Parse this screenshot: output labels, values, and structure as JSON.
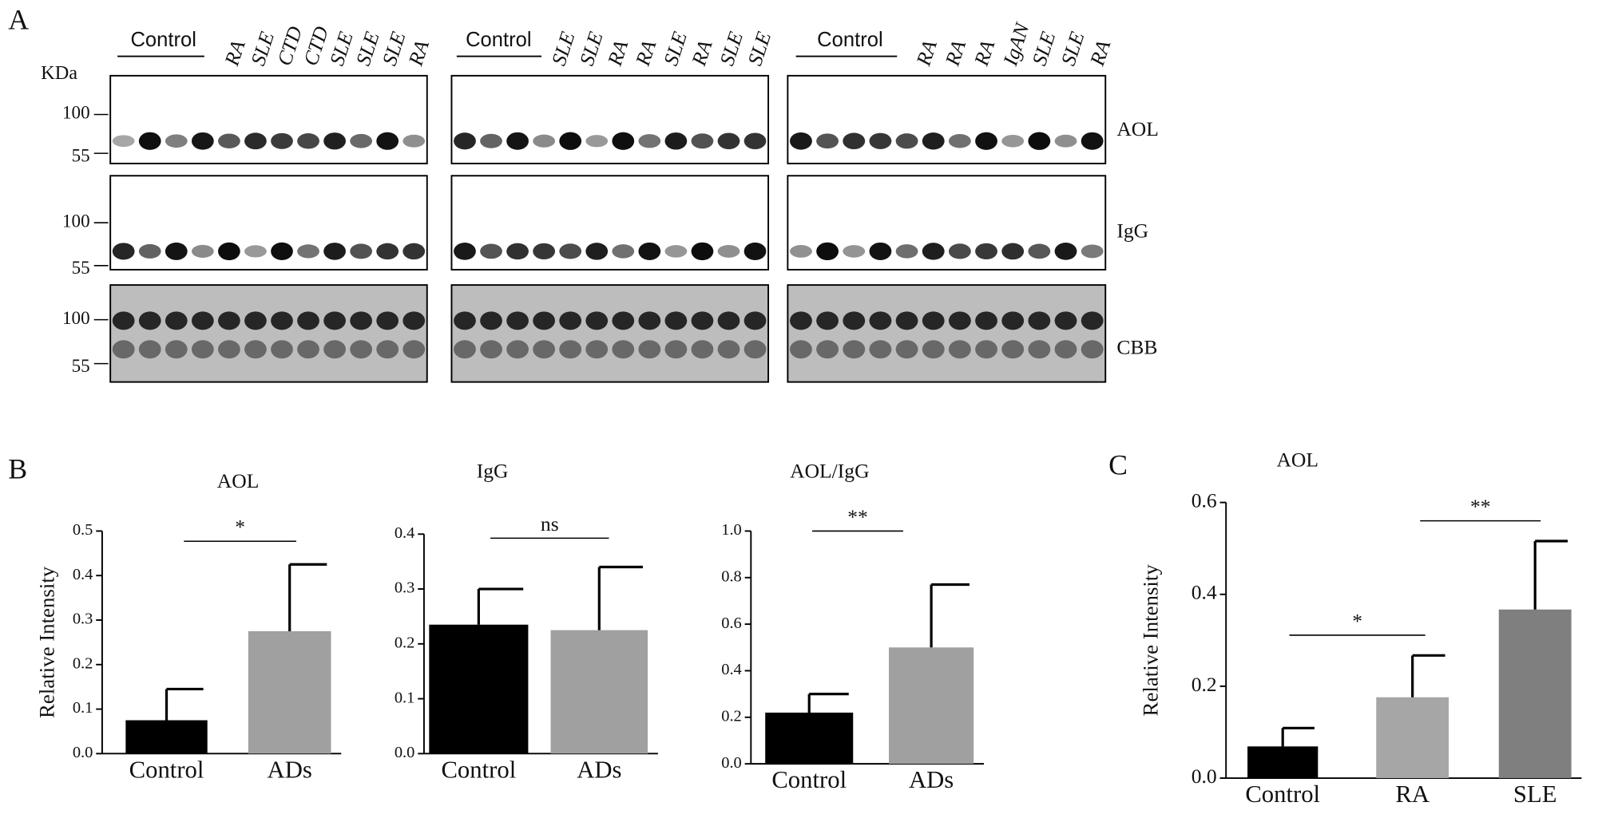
{
  "panel_a": {
    "label": "A",
    "kda": "KDa",
    "markers": [
      "100",
      "55"
    ],
    "control": "Control",
    "groups": [
      [
        "RA",
        "SLE",
        "CTD",
        "CTD",
        "SLE",
        "SLE",
        "SLE",
        "RA"
      ],
      [
        "SLE",
        "SLE",
        "RA",
        "RA",
        "SLE",
        "RA",
        "SLE",
        "SLE"
      ],
      [
        "RA",
        "RA",
        "RA",
        "IgAN",
        "SLE",
        "SLE",
        "RA"
      ]
    ],
    "rows": [
      "AOL",
      "IgG",
      "CBB"
    ]
  },
  "panel_b": {
    "label": "B"
  },
  "panel_c": {
    "label": "C"
  },
  "chart_data": [
    {
      "type": "bar",
      "title": "AOL",
      "ylabel": "Relative Intensity",
      "categories": [
        "Control",
        "ADs"
      ],
      "values": [
        0.075,
        0.275
      ],
      "errors": [
        0.07,
        0.15
      ],
      "colors": [
        "#000000",
        "#a0a0a0"
      ],
      "ylim": [
        0,
        0.5
      ],
      "yticks": [
        {
          "value": 0,
          "label": "0.0"
        },
        0.1,
        0.2,
        0.3,
        0.4,
        0.5
      ],
      "annotations": [
        "*"
      ]
    },
    {
      "type": "bar",
      "title": "IgG",
      "categories": [
        "Control",
        "ADs"
      ],
      "values": [
        0.235,
        0.225
      ],
      "errors": [
        0.065,
        0.115
      ],
      "colors": [
        "#000000",
        "#a0a0a0"
      ],
      "ylim": [
        0,
        0.4
      ],
      "yticks": [
        {
          "value": 0,
          "label": "0.0"
        },
        0.1,
        0.2,
        0.3,
        0.4
      ],
      "annotations": [
        "ns"
      ]
    },
    {
      "type": "bar",
      "title": "AOL/IgG",
      "categories": [
        "Control",
        "ADs"
      ],
      "values": [
        0.22,
        0.5
      ],
      "errors": [
        0.08,
        0.27
      ],
      "colors": [
        "#000000",
        "#a0a0a0"
      ],
      "ylim": [
        0,
        1
      ],
      "yticks": [
        {
          "value": 0,
          "label": "0.0"
        },
        0.2,
        0.4,
        0.6,
        0.8,
        {
          "value": 1,
          "label": "1.0"
        }
      ],
      "annotations": [
        "**"
      ]
    },
    {
      "type": "bar",
      "title": "AOL",
      "ylabel": "Relative  Intensity",
      "categories": [
        "Control",
        "RA",
        "SLE"
      ],
      "values": [
        0.069,
        0.176,
        0.367
      ],
      "errors": [
        0.04,
        0.091,
        0.149
      ],
      "colors": [
        "#000000",
        "#a6a6a6",
        "#7f7f7f"
      ],
      "ylim": [
        0,
        0.6
      ],
      "yticks": [
        {
          "value": 0,
          "label": "0.0"
        },
        0.2,
        0.4,
        0.6
      ],
      "annotations": [
        "*",
        "**"
      ]
    }
  ]
}
